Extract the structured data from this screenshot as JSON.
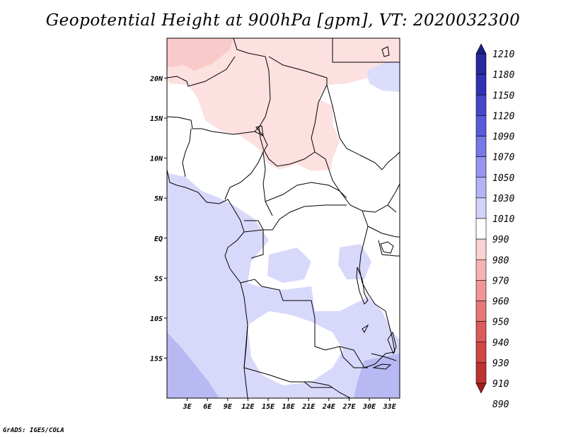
{
  "title": "Geopotential Height at 900hPa [gpm], VT: 2020032300",
  "credit": "GrADS: IGES/COLA",
  "map": {
    "lon_range": [
      0,
      34.5
    ],
    "lat_range": [
      -20,
      25
    ],
    "lat_ticks": [
      {
        "value": 20,
        "label": "20N"
      },
      {
        "value": 15,
        "label": "15N"
      },
      {
        "value": 10,
        "label": "10N"
      },
      {
        "value": 5,
        "label": "5N"
      },
      {
        "value": 0,
        "label": "EQ"
      },
      {
        "value": -5,
        "label": "5S"
      },
      {
        "value": -10,
        "label": "10S"
      },
      {
        "value": -15,
        "label": "15S"
      }
    ],
    "lon_ticks": [
      {
        "value": 3,
        "label": "3E"
      },
      {
        "value": 6,
        "label": "6E"
      },
      {
        "value": 9,
        "label": "9E"
      },
      {
        "value": 12,
        "label": "12E"
      },
      {
        "value": 15,
        "label": "15E"
      },
      {
        "value": 18,
        "label": "18E"
      },
      {
        "value": 21,
        "label": "21E"
      },
      {
        "value": 24,
        "label": "24E"
      },
      {
        "value": 27,
        "label": "27E"
      },
      {
        "value": 30,
        "label": "30E"
      },
      {
        "value": 33,
        "label": "33E"
      }
    ]
  },
  "colorbar": {
    "labels": [
      "1210",
      "1180",
      "1150",
      "1120",
      "1090",
      "1070",
      "1050",
      "1030",
      "1010",
      "990",
      "980",
      "970",
      "960",
      "950",
      "940",
      "930",
      "910",
      "890"
    ],
    "colors": [
      "#1f1f8a",
      "#28289f",
      "#3232b4",
      "#4646c8",
      "#5a5adc",
      "#7878e6",
      "#9696f0",
      "#b4b4f5",
      "#d2d2fa",
      "#ffffff",
      "#fad2d2",
      "#f5b4b4",
      "#f09696",
      "#e67878",
      "#dc5a5a",
      "#d24646",
      "#be3232",
      "#a01e1e"
    ]
  }
}
